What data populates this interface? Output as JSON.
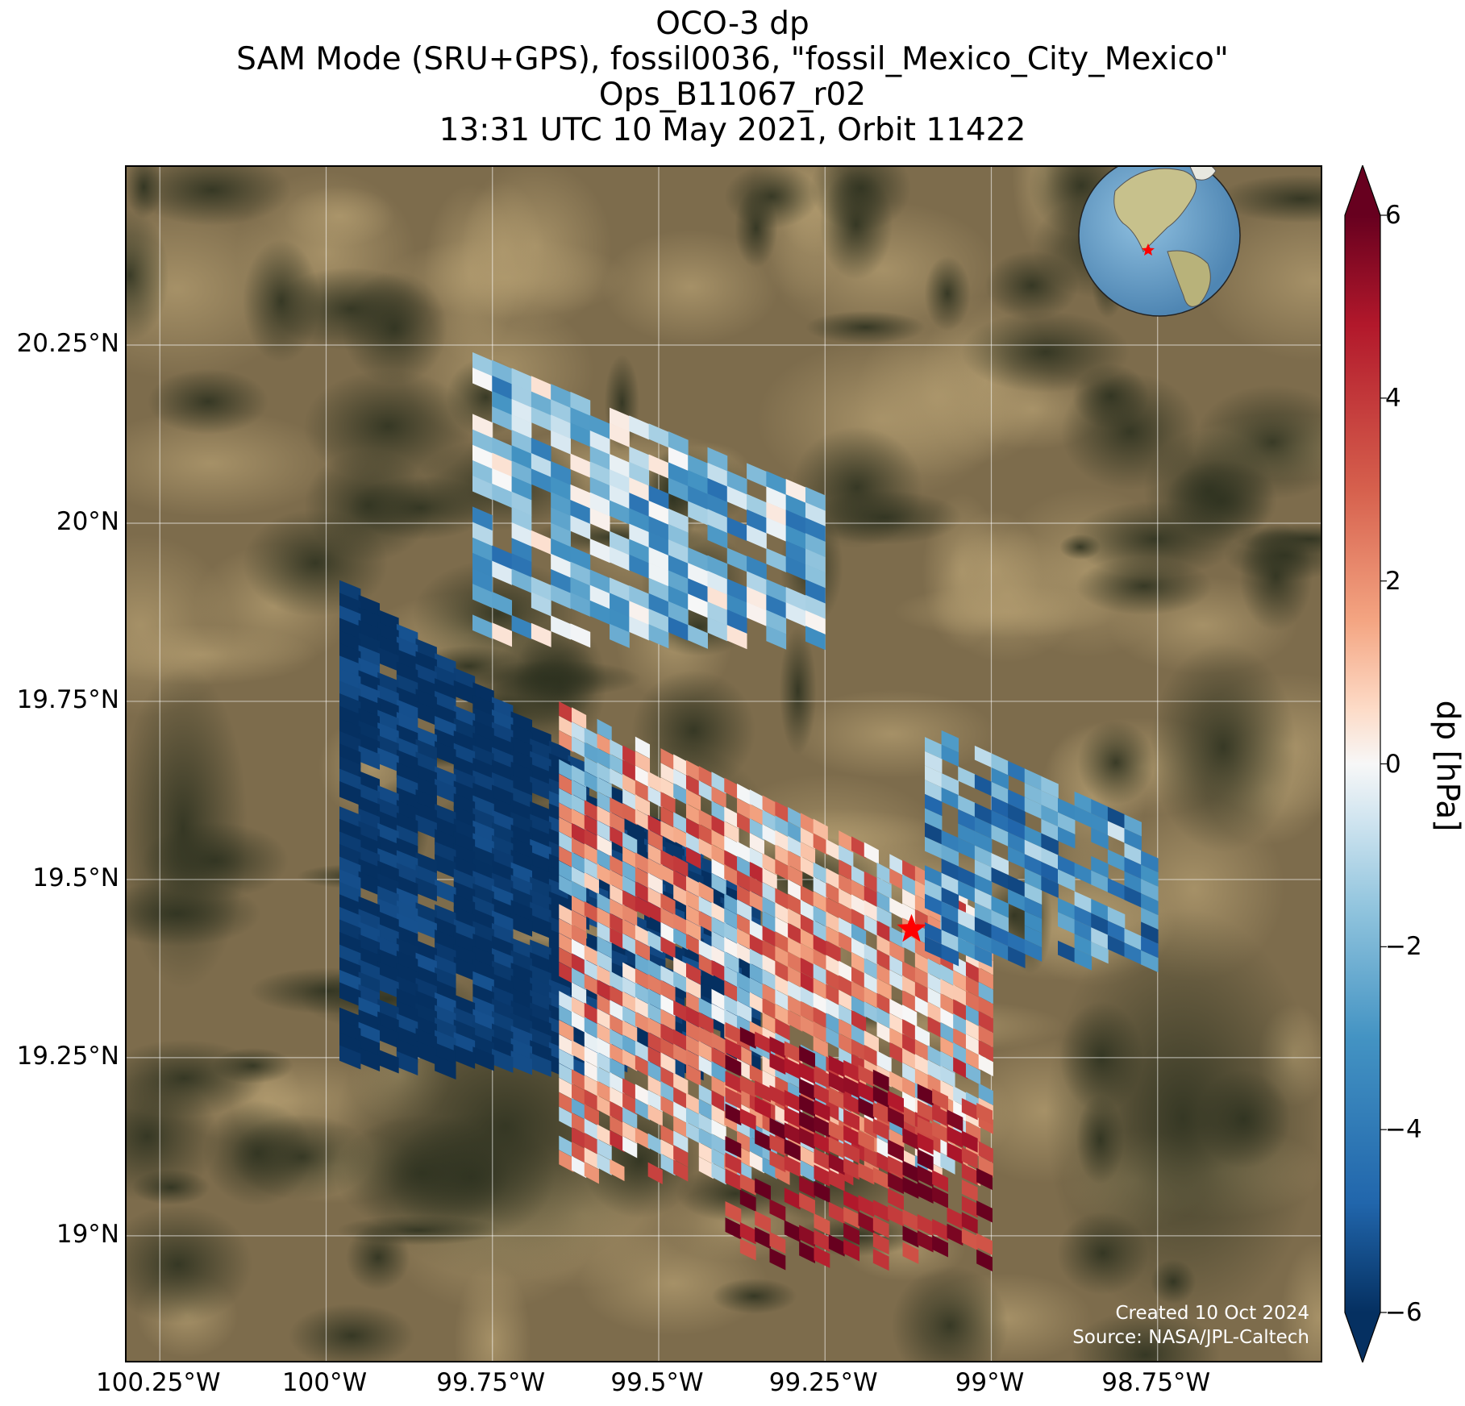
{
  "title": {
    "line1": "OCO-3 dp",
    "line2": "SAM Mode (SRU+GPS), fossil0036, \"fossil_Mexico_City_Mexico\"",
    "line3": "Ops_B11067_r02",
    "line4": "13:31 UTC 10 May 2021, Orbit 11422"
  },
  "map": {
    "x_ticks": [
      "100.25°W",
      "100°W",
      "99.75°W",
      "99.5°W",
      "99.25°W",
      "99°W",
      "98.75°W"
    ],
    "y_ticks": [
      "20.25°N",
      "20°N",
      "19.75°N",
      "19.5°N",
      "19.25°N",
      "19°N"
    ],
    "lon_range": [
      -100.3,
      -98.5
    ],
    "lat_range": [
      18.82,
      20.5
    ],
    "target_marker": {
      "lon": -99.12,
      "lat": 19.43,
      "color": "#ff0000",
      "icon": "star-icon"
    },
    "basemap": "satellite imagery",
    "grid": true
  },
  "inset_globe": {
    "description": "globe-icon",
    "ocean_color": "#6fa6d0",
    "land_color": "#c9c48a",
    "marker_color": "#ff0000"
  },
  "colorbar": {
    "label": "dp [hPa]",
    "ticks": [
      "6",
      "4",
      "2",
      "0",
      "−2",
      "−4",
      "−6"
    ],
    "range": [
      -6,
      6
    ],
    "colormap": "RdBu_r",
    "extend": "both"
  },
  "credits": {
    "created": "Created 10 Oct 2024",
    "source": "Source: NASA/JPL-Caltech"
  },
  "chart_data": {
    "type": "heatmap",
    "variable": "dp",
    "units": "hPa",
    "value_range": [
      -6,
      6
    ],
    "swaths": [
      {
        "name": "north",
        "lon_range": [
          -99.78,
          -99.25
        ],
        "lat_range": [
          19.85,
          20.24
        ],
        "mean_dp": -2
      },
      {
        "name": "west-edge",
        "lon_range": [
          -99.98,
          -99.35
        ],
        "lat_range": [
          19.25,
          19.92
        ],
        "mean_dp": -6
      },
      {
        "name": "central",
        "lon_range": [
          -99.65,
          -99.0
        ],
        "lat_range": [
          19.1,
          19.75
        ],
        "mean_dp": 1
      },
      {
        "name": "east",
        "lon_range": [
          -99.1,
          -98.75
        ],
        "lat_range": [
          19.4,
          19.72
        ],
        "mean_dp": -3
      },
      {
        "name": "south",
        "lon_range": [
          -99.4,
          -99.0
        ],
        "lat_range": [
          18.98,
          19.3
        ],
        "mean_dp": 5
      }
    ]
  }
}
